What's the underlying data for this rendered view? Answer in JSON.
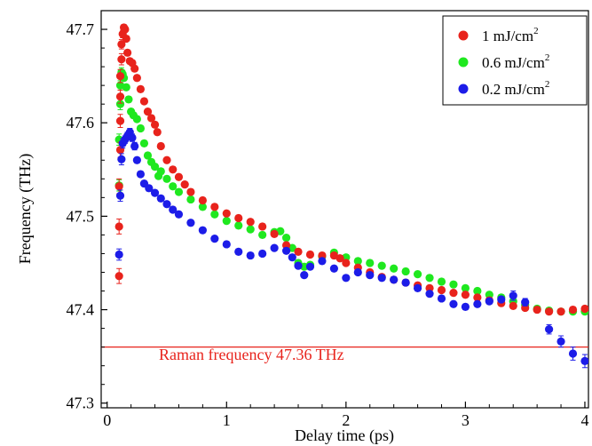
{
  "chart_data": {
    "type": "scatter",
    "xlabel": "Delay time (ps)",
    "ylabel": "Frequency (THz)",
    "xlim": [
      -0.05,
      4.03
    ],
    "ylim": [
      47.295,
      47.72
    ],
    "xticks": [
      0,
      1,
      2,
      3,
      4
    ],
    "yticks": [
      47.3,
      47.4,
      47.5,
      47.6,
      47.7
    ],
    "ytick_labels": [
      "47.3",
      "47.4",
      "47.5",
      "47.6",
      "47.7"
    ],
    "grid": false,
    "legend_position": "top-right",
    "reference_line": {
      "y": 47.36,
      "color": "#e8231c",
      "label": "Raman frequency 47.36 THz"
    },
    "series": [
      {
        "name": "1 mJ/cm",
        "superscript": "2",
        "color": "#e8231c",
        "points": [
          [
            0.1,
            47.436,
            0.008
          ],
          [
            0.1,
            47.489,
            0.008
          ],
          [
            0.1,
            47.532,
            0.008
          ],
          [
            0.11,
            47.571,
            0.008
          ],
          [
            0.11,
            47.602,
            0.007
          ],
          [
            0.11,
            47.628,
            0.007
          ],
          [
            0.11,
            47.65,
            0.007
          ],
          [
            0.12,
            47.668,
            0.006
          ],
          [
            0.12,
            47.684,
            0.005
          ],
          [
            0.13,
            47.695,
            0.004
          ],
          [
            0.14,
            47.702,
            0.003
          ],
          [
            0.15,
            47.7,
            0.003
          ],
          [
            0.16,
            47.69,
            0.003
          ],
          [
            0.17,
            47.675,
            0.003
          ],
          [
            0.19,
            47.666,
            0.003
          ],
          [
            0.21,
            47.664,
            0.003
          ],
          [
            0.23,
            47.658,
            0.003
          ],
          [
            0.25,
            47.648,
            0.003
          ],
          [
            0.28,
            47.636,
            0.003
          ],
          [
            0.31,
            47.623,
            0.003
          ],
          [
            0.34,
            47.612,
            0.003
          ],
          [
            0.37,
            47.605,
            0.003
          ],
          [
            0.4,
            47.598,
            0.003
          ],
          [
            0.42,
            47.59,
            0.003
          ],
          [
            0.45,
            47.575,
            0.003
          ],
          [
            0.5,
            47.56,
            0.003
          ],
          [
            0.55,
            47.55,
            0.003
          ],
          [
            0.6,
            47.542,
            0.003
          ],
          [
            0.65,
            47.534,
            0.003
          ],
          [
            0.7,
            47.526,
            0.003
          ],
          [
            0.8,
            47.517,
            0.003
          ],
          [
            0.9,
            47.51,
            0.003
          ],
          [
            1.0,
            47.503,
            0.003
          ],
          [
            1.1,
            47.498,
            0.003
          ],
          [
            1.2,
            47.494,
            0.003
          ],
          [
            1.3,
            47.489,
            0.003
          ],
          [
            1.4,
            47.481,
            0.003
          ],
          [
            1.5,
            47.469,
            0.003
          ],
          [
            1.6,
            47.462,
            0.003
          ],
          [
            1.7,
            47.459,
            0.003
          ],
          [
            1.8,
            47.458,
            0.003
          ],
          [
            1.9,
            47.458,
            0.003
          ],
          [
            1.95,
            47.455,
            0.003
          ],
          [
            2.0,
            47.45,
            0.003
          ],
          [
            2.1,
            47.445,
            0.003
          ],
          [
            2.2,
            47.44,
            0.003
          ],
          [
            2.3,
            47.435,
            0.003
          ],
          [
            2.4,
            47.432,
            0.003
          ],
          [
            2.5,
            47.429,
            0.003
          ],
          [
            2.6,
            47.426,
            0.003
          ],
          [
            2.7,
            47.423,
            0.003
          ],
          [
            2.8,
            47.421,
            0.003
          ],
          [
            2.9,
            47.418,
            0.003
          ],
          [
            3.0,
            47.416,
            0.003
          ],
          [
            3.1,
            47.413,
            0.003
          ],
          [
            3.2,
            47.41,
            0.003
          ],
          [
            3.3,
            47.407,
            0.003
          ],
          [
            3.4,
            47.404,
            0.003
          ],
          [
            3.5,
            47.402,
            0.003
          ],
          [
            3.6,
            47.4,
            0.003
          ],
          [
            3.7,
            47.398,
            0.003
          ],
          [
            3.8,
            47.398,
            0.003
          ],
          [
            3.9,
            47.4,
            0.003
          ],
          [
            4.0,
            47.401,
            0.003
          ]
        ]
      },
      {
        "name": "0.6 mJ/cm",
        "superscript": "2",
        "color": "#1fe81f",
        "points": [
          [
            0.1,
            47.533,
            0.006
          ],
          [
            0.1,
            47.582,
            0.006
          ],
          [
            0.11,
            47.62,
            0.006
          ],
          [
            0.11,
            47.64,
            0.005
          ],
          [
            0.12,
            47.654,
            0.005
          ],
          [
            0.13,
            47.652,
            0.004
          ],
          [
            0.14,
            47.648,
            0.003
          ],
          [
            0.16,
            47.638,
            0.003
          ],
          [
            0.18,
            47.625,
            0.003
          ],
          [
            0.2,
            47.612,
            0.003
          ],
          [
            0.22,
            47.608,
            0.003
          ],
          [
            0.25,
            47.604,
            0.003
          ],
          [
            0.28,
            47.594,
            0.003
          ],
          [
            0.31,
            47.578,
            0.003
          ],
          [
            0.34,
            47.565,
            0.003
          ],
          [
            0.37,
            47.558,
            0.003
          ],
          [
            0.4,
            47.553,
            0.003
          ],
          [
            0.43,
            47.543,
            0.003
          ],
          [
            0.45,
            47.548,
            0.003
          ],
          [
            0.5,
            47.54,
            0.003
          ],
          [
            0.55,
            47.532,
            0.003
          ],
          [
            0.6,
            47.526,
            0.003
          ],
          [
            0.7,
            47.518,
            0.003
          ],
          [
            0.8,
            47.51,
            0.003
          ],
          [
            0.9,
            47.502,
            0.003
          ],
          [
            1.0,
            47.495,
            0.003
          ],
          [
            1.1,
            47.49,
            0.003
          ],
          [
            1.2,
            47.486,
            0.003
          ],
          [
            1.3,
            47.48,
            0.003
          ],
          [
            1.4,
            47.483,
            0.003
          ],
          [
            1.45,
            47.484,
            0.003
          ],
          [
            1.5,
            47.477,
            0.003
          ],
          [
            1.55,
            47.466,
            0.003
          ],
          [
            1.6,
            47.45,
            0.003
          ],
          [
            1.65,
            47.446,
            0.003
          ],
          [
            1.7,
            47.448,
            0.003
          ],
          [
            1.8,
            47.457,
            0.003
          ],
          [
            1.9,
            47.461,
            0.003
          ],
          [
            2.0,
            47.456,
            0.003
          ],
          [
            2.1,
            47.452,
            0.003
          ],
          [
            2.2,
            47.45,
            0.003
          ],
          [
            2.3,
            47.447,
            0.003
          ],
          [
            2.4,
            47.444,
            0.003
          ],
          [
            2.5,
            47.441,
            0.003
          ],
          [
            2.6,
            47.438,
            0.003
          ],
          [
            2.7,
            47.434,
            0.003
          ],
          [
            2.8,
            47.43,
            0.003
          ],
          [
            2.9,
            47.427,
            0.003
          ],
          [
            3.0,
            47.423,
            0.003
          ],
          [
            3.1,
            47.42,
            0.003
          ],
          [
            3.2,
            47.416,
            0.003
          ],
          [
            3.3,
            47.413,
            0.003
          ],
          [
            3.4,
            47.409,
            0.003
          ],
          [
            3.5,
            47.405,
            0.003
          ],
          [
            3.6,
            47.401,
            0.003
          ],
          [
            3.7,
            47.399,
            0.003
          ],
          [
            3.8,
            47.398,
            0.003
          ],
          [
            3.9,
            47.398,
            0.003
          ],
          [
            4.0,
            47.398,
            0.003
          ]
        ]
      },
      {
        "name": "0.2 mJ/cm",
        "superscript": "2",
        "color": "#1c1ce8",
        "points": [
          [
            0.1,
            47.459,
            0.006
          ],
          [
            0.11,
            47.522,
            0.006
          ],
          [
            0.12,
            47.561,
            0.006
          ],
          [
            0.13,
            47.578,
            0.005
          ],
          [
            0.15,
            47.582,
            0.004
          ],
          [
            0.17,
            47.586,
            0.004
          ],
          [
            0.19,
            47.59,
            0.004
          ],
          [
            0.21,
            47.584,
            0.004
          ],
          [
            0.23,
            47.575,
            0.004
          ],
          [
            0.25,
            47.56,
            0.003
          ],
          [
            0.28,
            47.545,
            0.003
          ],
          [
            0.31,
            47.535,
            0.003
          ],
          [
            0.35,
            47.53,
            0.003
          ],
          [
            0.4,
            47.525,
            0.003
          ],
          [
            0.45,
            47.519,
            0.003
          ],
          [
            0.5,
            47.513,
            0.003
          ],
          [
            0.55,
            47.507,
            0.003
          ],
          [
            0.6,
            47.502,
            0.003
          ],
          [
            0.7,
            47.493,
            0.003
          ],
          [
            0.8,
            47.485,
            0.003
          ],
          [
            0.9,
            47.476,
            0.003
          ],
          [
            1.0,
            47.47,
            0.003
          ],
          [
            1.1,
            47.462,
            0.003
          ],
          [
            1.2,
            47.458,
            0.003
          ],
          [
            1.3,
            47.46,
            0.003
          ],
          [
            1.4,
            47.466,
            0.003
          ],
          [
            1.5,
            47.463,
            0.003
          ],
          [
            1.55,
            47.456,
            0.003
          ],
          [
            1.6,
            47.447,
            0.003
          ],
          [
            1.65,
            47.437,
            0.003
          ],
          [
            1.7,
            47.446,
            0.003
          ],
          [
            1.8,
            47.452,
            0.003
          ],
          [
            1.9,
            47.444,
            0.003
          ],
          [
            2.0,
            47.434,
            0.003
          ],
          [
            2.1,
            47.44,
            0.003
          ],
          [
            2.2,
            47.437,
            0.003
          ],
          [
            2.3,
            47.434,
            0.003
          ],
          [
            2.4,
            47.432,
            0.003
          ],
          [
            2.5,
            47.429,
            0.003
          ],
          [
            2.6,
            47.423,
            0.003
          ],
          [
            2.7,
            47.417,
            0.003
          ],
          [
            2.8,
            47.412,
            0.003
          ],
          [
            2.9,
            47.406,
            0.003
          ],
          [
            3.0,
            47.403,
            0.003
          ],
          [
            3.1,
            47.406,
            0.003
          ],
          [
            3.2,
            47.409,
            0.003
          ],
          [
            3.3,
            47.411,
            0.003
          ],
          [
            3.4,
            47.415,
            0.005
          ],
          [
            3.5,
            47.408,
            0.004
          ],
          [
            3.7,
            47.379,
            0.005
          ],
          [
            3.8,
            47.366,
            0.006
          ],
          [
            3.9,
            47.353,
            0.007
          ],
          [
            4.0,
            47.345,
            0.007
          ]
        ]
      }
    ]
  }
}
